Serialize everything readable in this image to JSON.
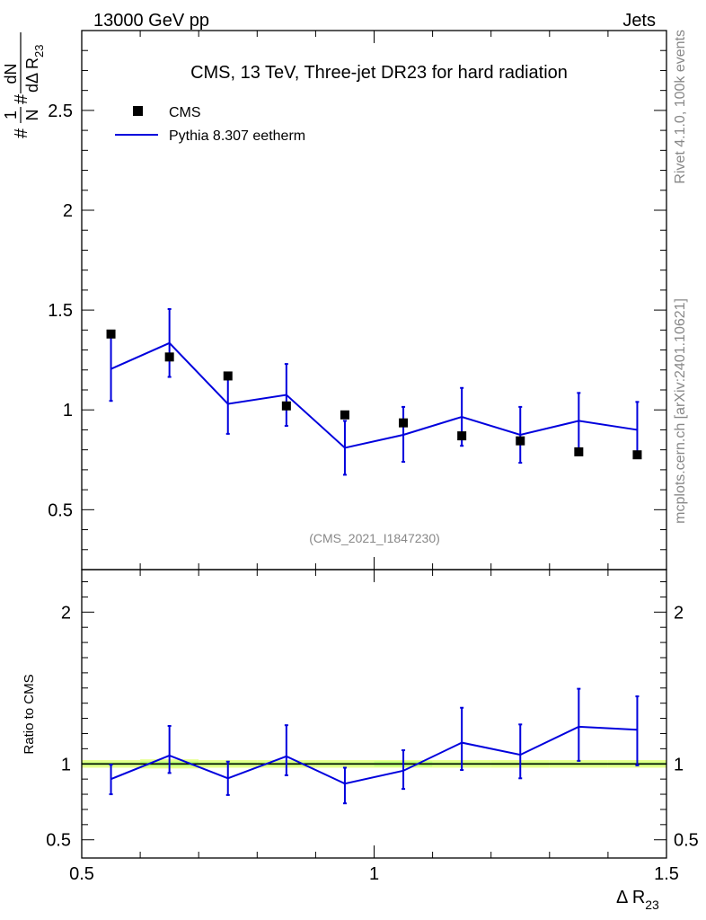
{
  "header": {
    "left": "13000 GeV pp",
    "right": "Jets"
  },
  "side": {
    "rivet": "Rivet 4.1.0,  100k events",
    "mcplots": "mcplots.cern.ch [arXiv:2401.10621]"
  },
  "colors": {
    "mc": "#0000dd",
    "data": "#000000",
    "band_outer": "#e5ff8c",
    "band_inner": "#b4ff70"
  },
  "chart_data": {
    "type": "scatter",
    "title": "CMS, 13 TeV, Three-jet DR23 for hard radiation",
    "analysis_id": "(CMS_2021_I1847230)",
    "ylabel": {
      "num1": "1",
      "den1": "N",
      "num2": "dN",
      "den2": "dΔ R",
      "den2_sub": "23"
    },
    "xlabel": "Δ R",
    "xlabel_sub": "23",
    "xlim": [
      0.5,
      1.5
    ],
    "ylim": [
      0.2,
      2.9
    ],
    "x_ticks": [
      "0.5",
      "1",
      "1.5"
    ],
    "y_ticks": [
      "0.5",
      "1",
      "1.5",
      "2",
      "2.5"
    ],
    "legend": {
      "data": "CMS",
      "mc": "Pythia 8.307 eetherm"
    },
    "x": [
      0.55,
      0.65,
      0.75,
      0.85,
      0.95,
      1.05,
      1.15,
      1.25,
      1.35,
      1.45
    ],
    "data_values": [
      1.38,
      1.265,
      1.17,
      1.02,
      0.975,
      0.935,
      0.87,
      0.845,
      0.79,
      0.775
    ],
    "mc_values": [
      1.205,
      1.335,
      1.03,
      1.075,
      0.81,
      0.875,
      0.965,
      0.875,
      0.945,
      0.9
    ],
    "mc_err_low": [
      1.045,
      1.165,
      0.88,
      0.92,
      0.675,
      0.74,
      0.82,
      0.735,
      0.79,
      0.76
    ],
    "mc_err_high": [
      1.365,
      1.505,
      1.18,
      1.23,
      0.945,
      1.015,
      1.11,
      1.015,
      1.085,
      1.04
    ],
    "ratio": {
      "ylabel": "Ratio to CMS",
      "ylim": [
        0.38,
        2.28
      ],
      "y_ticks": [
        "0.5",
        "1",
        "2"
      ],
      "values": [
        0.9,
        1.055,
        0.905,
        1.05,
        0.87,
        0.955,
        1.14,
        1.06,
        1.245,
        1.225
      ],
      "err_low": [
        0.8,
        0.94,
        0.795,
        0.925,
        0.74,
        0.835,
        0.96,
        0.905,
        1.02,
        0.99
      ],
      "err_high": [
        0.995,
        1.25,
        1.015,
        1.255,
        0.975,
        1.09,
        1.37,
        1.26,
        1.495,
        1.445
      ],
      "band_outer_low": [
        0.975,
        0.97,
        0.975,
        0.975,
        0.975,
        0.975,
        0.975,
        0.975,
        0.975,
        0.975
      ],
      "band_outer_high": [
        1.025,
        1.03,
        1.025,
        1.025,
        1.025,
        1.025,
        1.025,
        1.025,
        1.025,
        1.025
      ],
      "band_inner_low": [
        0.99,
        0.985,
        0.99,
        0.99,
        0.99,
        0.985,
        0.99,
        0.99,
        0.99,
        0.99
      ],
      "band_inner_high": [
        1.01,
        1.015,
        1.01,
        1.01,
        1.01,
        1.015,
        1.01,
        1.01,
        1.01,
        1.01
      ]
    }
  }
}
